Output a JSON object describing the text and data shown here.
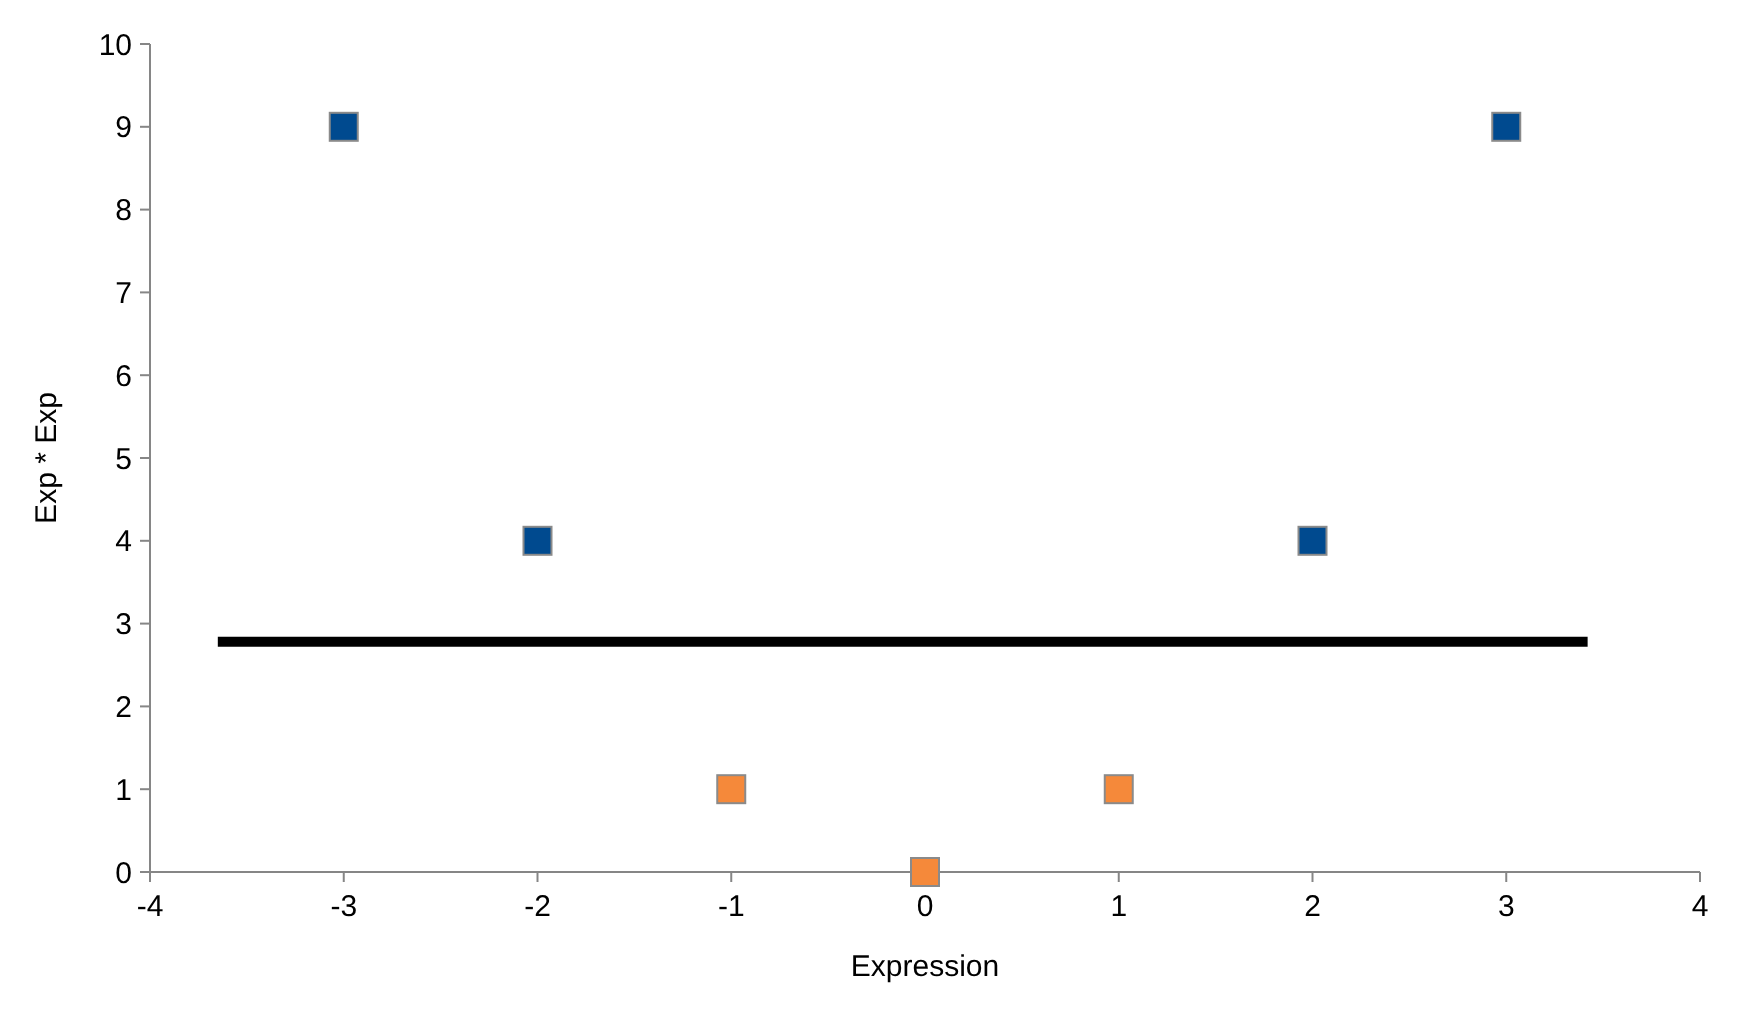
{
  "chart_data": {
    "type": "scatter",
    "xlabel": "Expression",
    "ylabel": "Exp * Exp",
    "xlim": [
      -4,
      4
    ],
    "xticks": [
      -4,
      -3,
      -2,
      -1,
      0,
      1,
      2,
      3,
      4
    ],
    "ylim": [
      0,
      10
    ],
    "yticks": [
      0,
      1,
      2,
      3,
      4,
      5,
      6,
      7,
      8,
      9,
      10
    ],
    "marker": "square",
    "series": [
      {
        "color": "#004a8f",
        "x": [
          -3,
          -2,
          2,
          3
        ],
        "values": [
          9,
          4,
          4,
          9
        ]
      },
      {
        "color": "#f5893a",
        "x": [
          -1,
          0,
          1
        ],
        "values": [
          1,
          0,
          1
        ]
      },
      {
        "type": "line",
        "color": "#000000",
        "x": [
          -3.65,
          3.42
        ],
        "values": [
          2.78,
          2.78
        ],
        "marker": "none",
        "line_style": "solid"
      }
    ]
  }
}
